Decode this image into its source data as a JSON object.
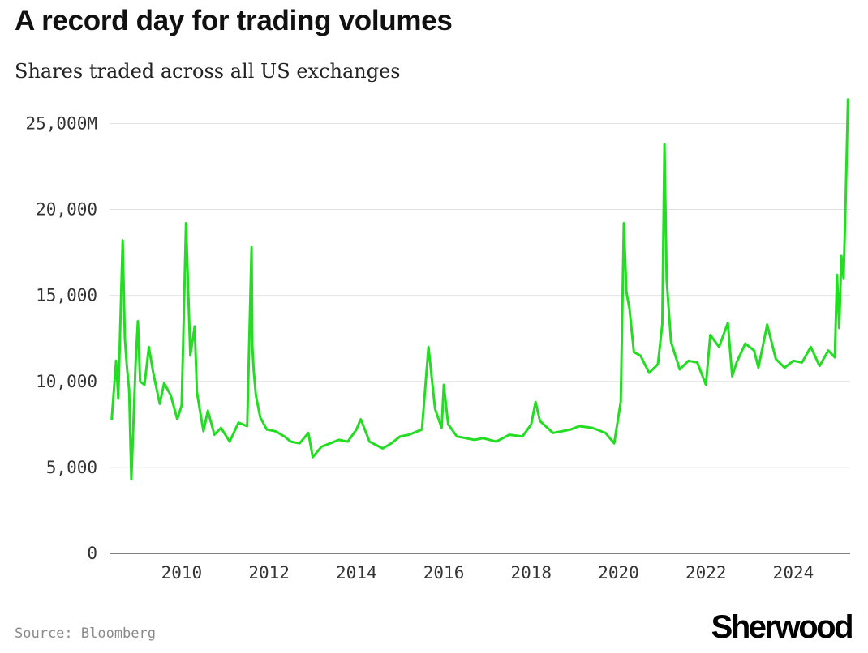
{
  "chart_data": {
    "type": "line",
    "title": "A record day for trading volumes",
    "subtitle": "Shares traded across all US exchanges",
    "source": "Source: Bloomberg",
    "brand": "Sherwood",
    "y_unit": "millions of shares",
    "ylim": [
      0,
      27000
    ],
    "y_ticks": [
      0,
      5000,
      10000,
      15000,
      20000,
      25000
    ],
    "y_tick_labels": [
      "0",
      "5,000",
      "10,000",
      "15,000",
      "20,000",
      "25,000M"
    ],
    "xlim": [
      2008.35,
      2025.3
    ],
    "x_ticks": [
      2010,
      2012,
      2014,
      2016,
      2018,
      2020,
      2022,
      2024
    ],
    "x_tick_labels": [
      "2010",
      "2012",
      "2014",
      "2016",
      "2018",
      "2020",
      "2022",
      "2024"
    ],
    "grid": true,
    "line_color": "#22dd22",
    "series": [
      {
        "x": [
          2008.4,
          2008.5,
          2008.55,
          2008.65,
          2008.7,
          2008.75,
          2008.8,
          2008.85,
          2008.95,
          2009.0,
          2009.05,
          2009.15,
          2009.25,
          2009.35,
          2009.5,
          2009.6,
          2009.75,
          2009.9,
          2010.0,
          2010.1,
          2010.2,
          2010.3,
          2010.35,
          2010.4,
          2010.5,
          2010.6,
          2010.75,
          2010.9,
          2011.1,
          2011.3,
          2011.5,
          2011.6,
          2011.62,
          2011.65,
          2011.7,
          2011.8,
          2011.95,
          2012.15,
          2012.35,
          2012.5,
          2012.7,
          2012.9,
          2013.0,
          2013.2,
          2013.4,
          2013.6,
          2013.8,
          2014.0,
          2014.1,
          2014.3,
          2014.6,
          2014.8,
          2015.0,
          2015.2,
          2015.5,
          2015.65,
          2015.8,
          2015.95,
          2016.0,
          2016.1,
          2016.3,
          2016.5,
          2016.7,
          2016.9,
          2017.2,
          2017.5,
          2017.8,
          2018.0,
          2018.1,
          2018.2,
          2018.5,
          2018.7,
          2018.9,
          2019.1,
          2019.4,
          2019.7,
          2019.9,
          2020.05,
          2020.12,
          2020.18,
          2020.25,
          2020.35,
          2020.5,
          2020.7,
          2020.9,
          2021.0,
          2021.05,
          2021.1,
          2021.2,
          2021.4,
          2021.6,
          2021.8,
          2022.0,
          2022.1,
          2022.3,
          2022.5,
          2022.6,
          2022.7,
          2022.9,
          2023.1,
          2023.2,
          2023.4,
          2023.6,
          2023.8,
          2024.0,
          2024.2,
          2024.4,
          2024.6,
          2024.8,
          2024.95,
          2025.0,
          2025.05,
          2025.1,
          2025.15,
          2025.2,
          2025.25
        ],
        "values": [
          7800,
          11200,
          9000,
          18200,
          12500,
          10800,
          9500,
          4300,
          11200,
          13500,
          10000,
          9800,
          12000,
          10500,
          8700,
          9900,
          9200,
          7800,
          8600,
          19200,
          11500,
          13200,
          9400,
          8600,
          7100,
          8300,
          6900,
          7300,
          6500,
          7600,
          7400,
          17800,
          12000,
          10600,
          9200,
          7900,
          7200,
          7100,
          6800,
          6500,
          6400,
          7000,
          5600,
          6200,
          6400,
          6600,
          6500,
          7200,
          7800,
          6500,
          6100,
          6400,
          6800,
          6900,
          7200,
          12000,
          8400,
          7300,
          9800,
          7500,
          6800,
          6700,
          6600,
          6700,
          6500,
          6900,
          6800,
          7500,
          8800,
          7700,
          7000,
          7100,
          7200,
          7400,
          7300,
          7000,
          6400,
          8800,
          19200,
          15200,
          14200,
          11700,
          11500,
          10500,
          11000,
          13300,
          23800,
          15900,
          12300,
          10700,
          11200,
          11100,
          9800,
          12700,
          12000,
          13400,
          10300,
          11100,
          12200,
          11800,
          10800,
          13300,
          11300,
          10800,
          11200,
          11100,
          12000,
          10900,
          11800,
          11400,
          16200,
          13100,
          17300,
          16000,
          20800,
          26400
        ]
      }
    ]
  }
}
